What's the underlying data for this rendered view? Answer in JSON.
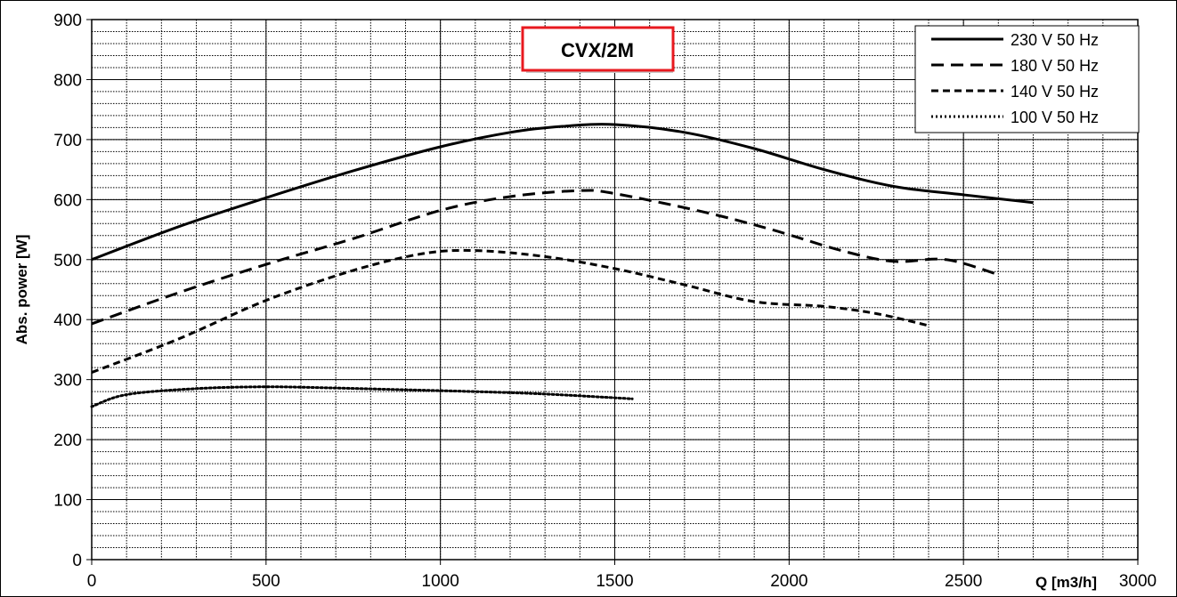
{
  "chart_data": {
    "type": "line",
    "title": "CVX/2M",
    "xlabel": "Q [m3/h]",
    "ylabel": "Abs. power [W]",
    "xlim": [
      0,
      3000
    ],
    "ylim": [
      0,
      900
    ],
    "x_ticks": [
      0,
      500,
      1000,
      1500,
      2000,
      2500,
      3000
    ],
    "y_ticks": [
      0,
      100,
      200,
      300,
      400,
      500,
      600,
      700,
      800,
      900
    ],
    "grid": true,
    "legend_position": "top-right",
    "colors": {
      "title_border": "#e8191f",
      "line": "#000000",
      "grid": "#000000"
    },
    "series": [
      {
        "name": "230 V 50 Hz",
        "style": "solid",
        "points": [
          [
            0,
            500
          ],
          [
            250,
            555
          ],
          [
            500,
            603
          ],
          [
            750,
            648
          ],
          [
            1000,
            688
          ],
          [
            1200,
            712
          ],
          [
            1350,
            722
          ],
          [
            1500,
            725
          ],
          [
            1700,
            712
          ],
          [
            1900,
            685
          ],
          [
            2100,
            650
          ],
          [
            2300,
            622
          ],
          [
            2500,
            608
          ],
          [
            2700,
            595
          ]
        ]
      },
      {
        "name": "180 V 50 Hz",
        "style": "dashed-long",
        "points": [
          [
            0,
            393
          ],
          [
            250,
            445
          ],
          [
            500,
            492
          ],
          [
            750,
            535
          ],
          [
            1000,
            582
          ],
          [
            1200,
            605
          ],
          [
            1400,
            615
          ],
          [
            1500,
            610
          ],
          [
            1750,
            580
          ],
          [
            1950,
            550
          ],
          [
            2150,
            515
          ],
          [
            2300,
            497
          ],
          [
            2450,
            500
          ],
          [
            2600,
            475
          ]
        ]
      },
      {
        "name": "140 V 50 Hz",
        "style": "dashed-short",
        "points": [
          [
            0,
            312
          ],
          [
            250,
            368
          ],
          [
            500,
            432
          ],
          [
            750,
            482
          ],
          [
            950,
            510
          ],
          [
            1100,
            515
          ],
          [
            1300,
            505
          ],
          [
            1500,
            485
          ],
          [
            1700,
            458
          ],
          [
            1900,
            430
          ],
          [
            2100,
            422
          ],
          [
            2250,
            410
          ],
          [
            2400,
            390
          ]
        ]
      },
      {
        "name": "100 V 50 Hz",
        "style": "dotted",
        "points": [
          [
            0,
            255
          ],
          [
            100,
            275
          ],
          [
            300,
            285
          ],
          [
            500,
            288
          ],
          [
            700,
            286
          ],
          [
            900,
            283
          ],
          [
            1100,
            280
          ],
          [
            1300,
            276
          ],
          [
            1550,
            268
          ]
        ]
      }
    ]
  }
}
